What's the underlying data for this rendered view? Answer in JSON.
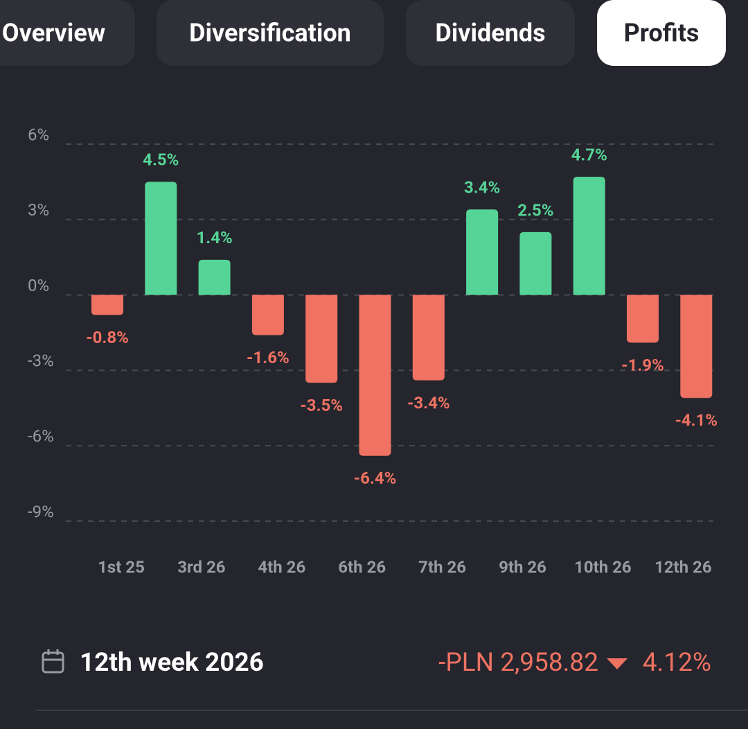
{
  "tabs": [
    "Overview",
    "Diversification",
    "Dividends",
    "Profits"
  ],
  "active_tab": "Profits",
  "chart_data": {
    "type": "bar",
    "values": [
      -0.8,
      4.5,
      1.4,
      -1.6,
      -3.5,
      -6.4,
      -3.4,
      3.4,
      2.5,
      4.7,
      -1.9,
      -4.1
    ],
    "value_labels": [
      "-0.8%",
      "4.5%",
      "1.4%",
      "-1.6%",
      "-3.5%",
      "-6.4%",
      "-3.4%",
      "3.4%",
      "2.5%",
      "4.7%",
      "-1.9%",
      "-4.1%"
    ],
    "x_tick_labels": [
      "1st 25",
      "3rd 26",
      "4th 26",
      "6th 26",
      "7th 26",
      "9th 26",
      "10th 26",
      "12th 26"
    ],
    "ylim": [
      -9,
      6
    ],
    "yticks": [
      {
        "value": 6,
        "label": "6%"
      },
      {
        "value": 3,
        "label": "3%"
      },
      {
        "value": 0,
        "label": "0%"
      },
      {
        "value": -3,
        "label": "-3%"
      },
      {
        "value": -6,
        "label": "-6%"
      },
      {
        "value": -9,
        "label": "-9%"
      }
    ],
    "positive_color": "#56d497",
    "negative_color": "#f07262",
    "grid": true
  },
  "summary": {
    "period": "12th week 2026",
    "amount": "-PLN 2,958.82",
    "change": "4.12%"
  }
}
